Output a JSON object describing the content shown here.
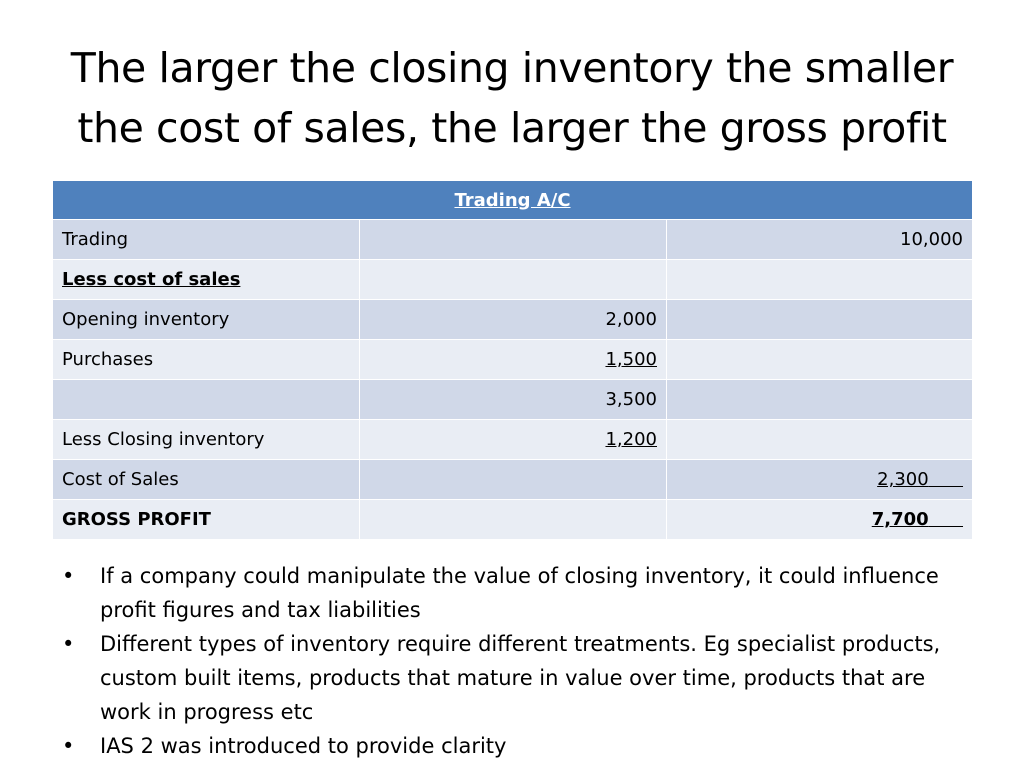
{
  "slide": {
    "title": "The larger the closing inventory the smaller the cost of sales, the larger the gross profit"
  },
  "table": {
    "header": "Trading A/C",
    "rows": [
      {
        "label": "Trading",
        "mid": "",
        "right": "10,000"
      },
      {
        "label": "Less cost of sales",
        "mid": "",
        "right": ""
      },
      {
        "label": "Opening inventory",
        "mid": "2,000",
        "right": ""
      },
      {
        "label": "Purchases",
        "mid": "1,500",
        "right": ""
      },
      {
        "label": "",
        "mid": "3,500",
        "right": ""
      },
      {
        "label": "Less Closing inventory",
        "mid": "1,200",
        "right": ""
      },
      {
        "label": "Cost of Sales",
        "mid": "",
        "right": "2,300"
      },
      {
        "label": "GROSS PROFIT",
        "mid": "",
        "right": "7,700"
      }
    ]
  },
  "bullets": {
    "marker": "•",
    "items": [
      "If a company could manipulate the value of closing inventory, it could influence profit figures and tax liabilities",
      "Different types of inventory require different treatments. Eg specialist products, custom built items, products that mature in value over time, products that are work in progress etc",
      "IAS 2 was introduced to provide clarity"
    ]
  }
}
